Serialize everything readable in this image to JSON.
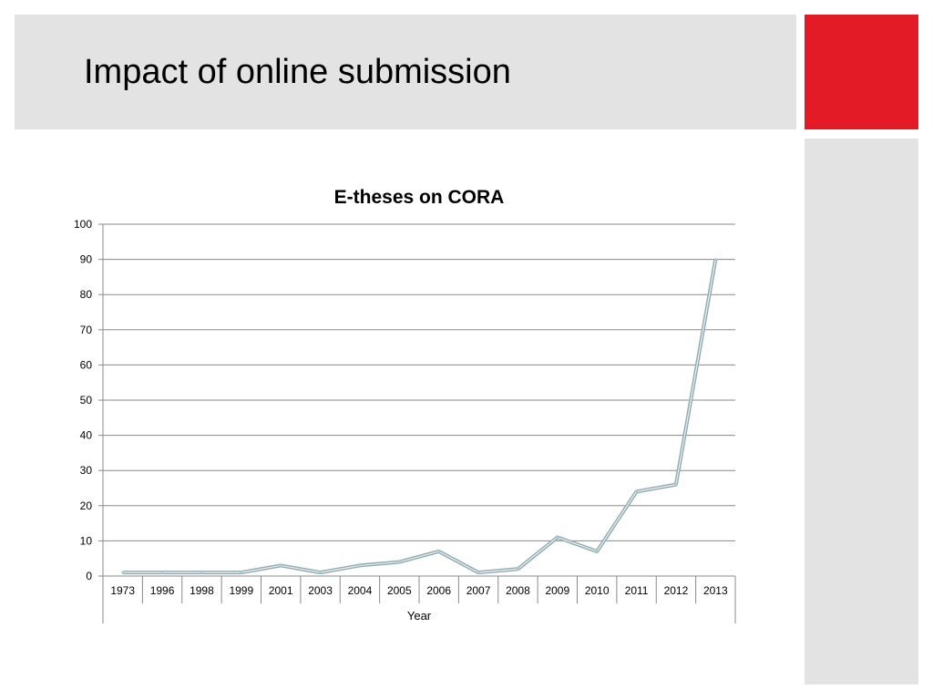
{
  "slide": {
    "title": "Impact of online submission",
    "accent_color": "#e21b26",
    "panel_color": "#e3e3e3"
  },
  "chart_data": {
    "type": "line",
    "title": "E-theses on CORA",
    "xlabel": "Year",
    "ylabel": "",
    "ylim": [
      0,
      100
    ],
    "yticks": [
      0,
      10,
      20,
      30,
      40,
      50,
      60,
      70,
      80,
      90,
      100
    ],
    "grid": true,
    "categories": [
      "1973",
      "1996",
      "1998",
      "1999",
      "2001",
      "2003",
      "2004",
      "2005",
      "2006",
      "2007",
      "2008",
      "2009",
      "2010",
      "2011",
      "2012",
      "2013"
    ],
    "values": [
      1,
      1,
      1,
      1,
      3,
      1,
      3,
      4,
      7,
      1,
      2,
      11,
      7,
      24,
      26,
      90
    ],
    "line_color": "#a9cdd8"
  }
}
